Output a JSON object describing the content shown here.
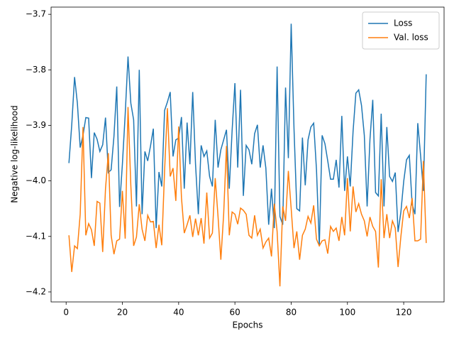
{
  "chart_data": {
    "type": "line",
    "x_label": "Epochs",
    "y_label": "Negative log-likelihood",
    "x": [
      1,
      2,
      3,
      4,
      5,
      6,
      7,
      8,
      9,
      10,
      11,
      12,
      13,
      14,
      15,
      16,
      17,
      18,
      19,
      20,
      21,
      22,
      23,
      24,
      25,
      26,
      27,
      28,
      29,
      30,
      31,
      32,
      33,
      34,
      35,
      36,
      37,
      38,
      39,
      40,
      41,
      42,
      43,
      44,
      45,
      46,
      47,
      48,
      49,
      50,
      51,
      52,
      53,
      54,
      55,
      56,
      57,
      58,
      59,
      60,
      61,
      62,
      63,
      64,
      65,
      66,
      67,
      68,
      69,
      70,
      71,
      72,
      73,
      74,
      75,
      76,
      77,
      78,
      79,
      80,
      81,
      82,
      83,
      84,
      85,
      86,
      87,
      88,
      89,
      90,
      91,
      92,
      93,
      94,
      95,
      96,
      97,
      98,
      99,
      100,
      101,
      102,
      103,
      104,
      105,
      106,
      107,
      108,
      109,
      110,
      111,
      112,
      113,
      114,
      115,
      116,
      117,
      118,
      119,
      120,
      121,
      122,
      123,
      124,
      125,
      126,
      127,
      128
    ],
    "series": [
      {
        "name": "Loss",
        "color": "#1f77b4",
        "values": [
          -3.968,
          -3.899,
          -3.813,
          -3.86,
          -3.94,
          -3.918,
          -3.886,
          -3.887,
          -3.995,
          -3.913,
          -3.925,
          -3.947,
          -3.935,
          -3.886,
          -3.985,
          -3.98,
          -3.92,
          -3.83,
          -4.047,
          -3.97,
          -3.88,
          -3.776,
          -3.86,
          -3.89,
          -4.046,
          -3.8,
          -4.06,
          -3.947,
          -3.964,
          -3.937,
          -3.906,
          -4.085,
          -3.984,
          -4.01,
          -3.873,
          -3.858,
          -3.84,
          -3.956,
          -3.926,
          -3.923,
          -3.885,
          -4.014,
          -3.895,
          -3.97,
          -3.84,
          -3.97,
          -4.06,
          -3.936,
          -3.956,
          -3.946,
          -3.992,
          -4.01,
          -3.89,
          -3.976,
          -3.944,
          -3.926,
          -3.908,
          -4.014,
          -3.91,
          -3.824,
          -3.976,
          -3.836,
          -4.027,
          -3.936,
          -3.944,
          -3.97,
          -3.915,
          -3.899,
          -3.976,
          -3.936,
          -3.977,
          -4.079,
          -4.014,
          -4.085,
          -3.794,
          -4.064,
          -4.079,
          -3.832,
          -3.959,
          -3.717,
          -3.905,
          -4.05,
          -4.054,
          -3.922,
          -4.008,
          -3.926,
          -3.903,
          -3.896,
          -3.98,
          -4.117,
          -3.918,
          -3.933,
          -3.964,
          -3.997,
          -3.997,
          -3.962,
          -4.012,
          -3.883,
          -4.018,
          -3.956,
          -4.01,
          -3.911,
          -3.842,
          -3.836,
          -3.864,
          -3.918,
          -4.046,
          -3.926,
          -3.854,
          -4.021,
          -4.027,
          -3.879,
          -4.046,
          -3.903,
          -3.992,
          -4.001,
          -3.985,
          -4.092,
          -4.056,
          -4.001,
          -3.962,
          -3.954,
          -4.042,
          -4.06,
          -3.896,
          -3.954,
          -4.018,
          -3.808
        ]
      },
      {
        "name": "Val. loss",
        "color": "#ff7f0e",
        "values": [
          -4.098,
          -4.164,
          -4.117,
          -4.122,
          -4.06,
          -3.903,
          -4.098,
          -4.077,
          -4.088,
          -4.117,
          -4.037,
          -4.04,
          -4.128,
          -4.014,
          -3.95,
          -4.098,
          -4.132,
          -4.108,
          -4.105,
          -4.018,
          -4.104,
          -3.867,
          -4.008,
          -4.117,
          -4.101,
          -4.042,
          -4.087,
          -4.108,
          -4.062,
          -4.074,
          -4.073,
          -4.121,
          -4.079,
          -4.116,
          -3.982,
          -3.869,
          -3.992,
          -3.977,
          -4.036,
          -3.902,
          -4.03,
          -4.094,
          -4.079,
          -4.062,
          -4.101,
          -4.068,
          -4.098,
          -4.067,
          -4.113,
          -4.021,
          -4.103,
          -4.094,
          -3.995,
          -4.064,
          -4.142,
          -4.06,
          -3.937,
          -4.098,
          -4.056,
          -4.06,
          -4.078,
          -4.049,
          -4.053,
          -4.06,
          -4.098,
          -4.103,
          -4.062,
          -4.098,
          -4.087,
          -4.121,
          -4.11,
          -4.103,
          -4.136,
          -4.041,
          -4.091,
          -4.19,
          -4.046,
          -4.072,
          -3.982,
          -4.05,
          -4.121,
          -4.091,
          -4.142,
          -4.098,
          -4.087,
          -4.064,
          -4.076,
          -4.044,
          -4.105,
          -4.117,
          -4.108,
          -4.106,
          -4.131,
          -4.082,
          -4.091,
          -4.085,
          -4.108,
          -4.065,
          -4.098,
          -3.995,
          -4.091,
          -4.01,
          -4.056,
          -4.041,
          -4.06,
          -4.072,
          -4.1,
          -4.065,
          -4.082,
          -4.091,
          -4.156,
          -3.997,
          -4.103,
          -4.06,
          -4.103,
          -4.072,
          -4.085,
          -4.155,
          -4.1,
          -4.054,
          -4.046,
          -4.067,
          -4.031,
          -4.108,
          -4.108,
          -4.105,
          -3.964,
          -4.112
        ]
      }
    ],
    "xlim": [
      -5.35,
      134.35
    ],
    "ylim": [
      -4.218,
      -3.687
    ],
    "xticks": [
      0,
      20,
      40,
      60,
      80,
      100,
      120
    ],
    "yticks": [
      {
        "value": -4.2,
        "label": "−4.2"
      },
      {
        "value": -4.1,
        "label": "−4.1"
      },
      {
        "value": -4.0,
        "label": "−4.0"
      },
      {
        "value": -3.9,
        "label": "−3.9"
      },
      {
        "value": -3.8,
        "label": "−3.8"
      },
      {
        "value": -3.7,
        "label": "−3.7"
      }
    ],
    "legend": "upper right"
  }
}
